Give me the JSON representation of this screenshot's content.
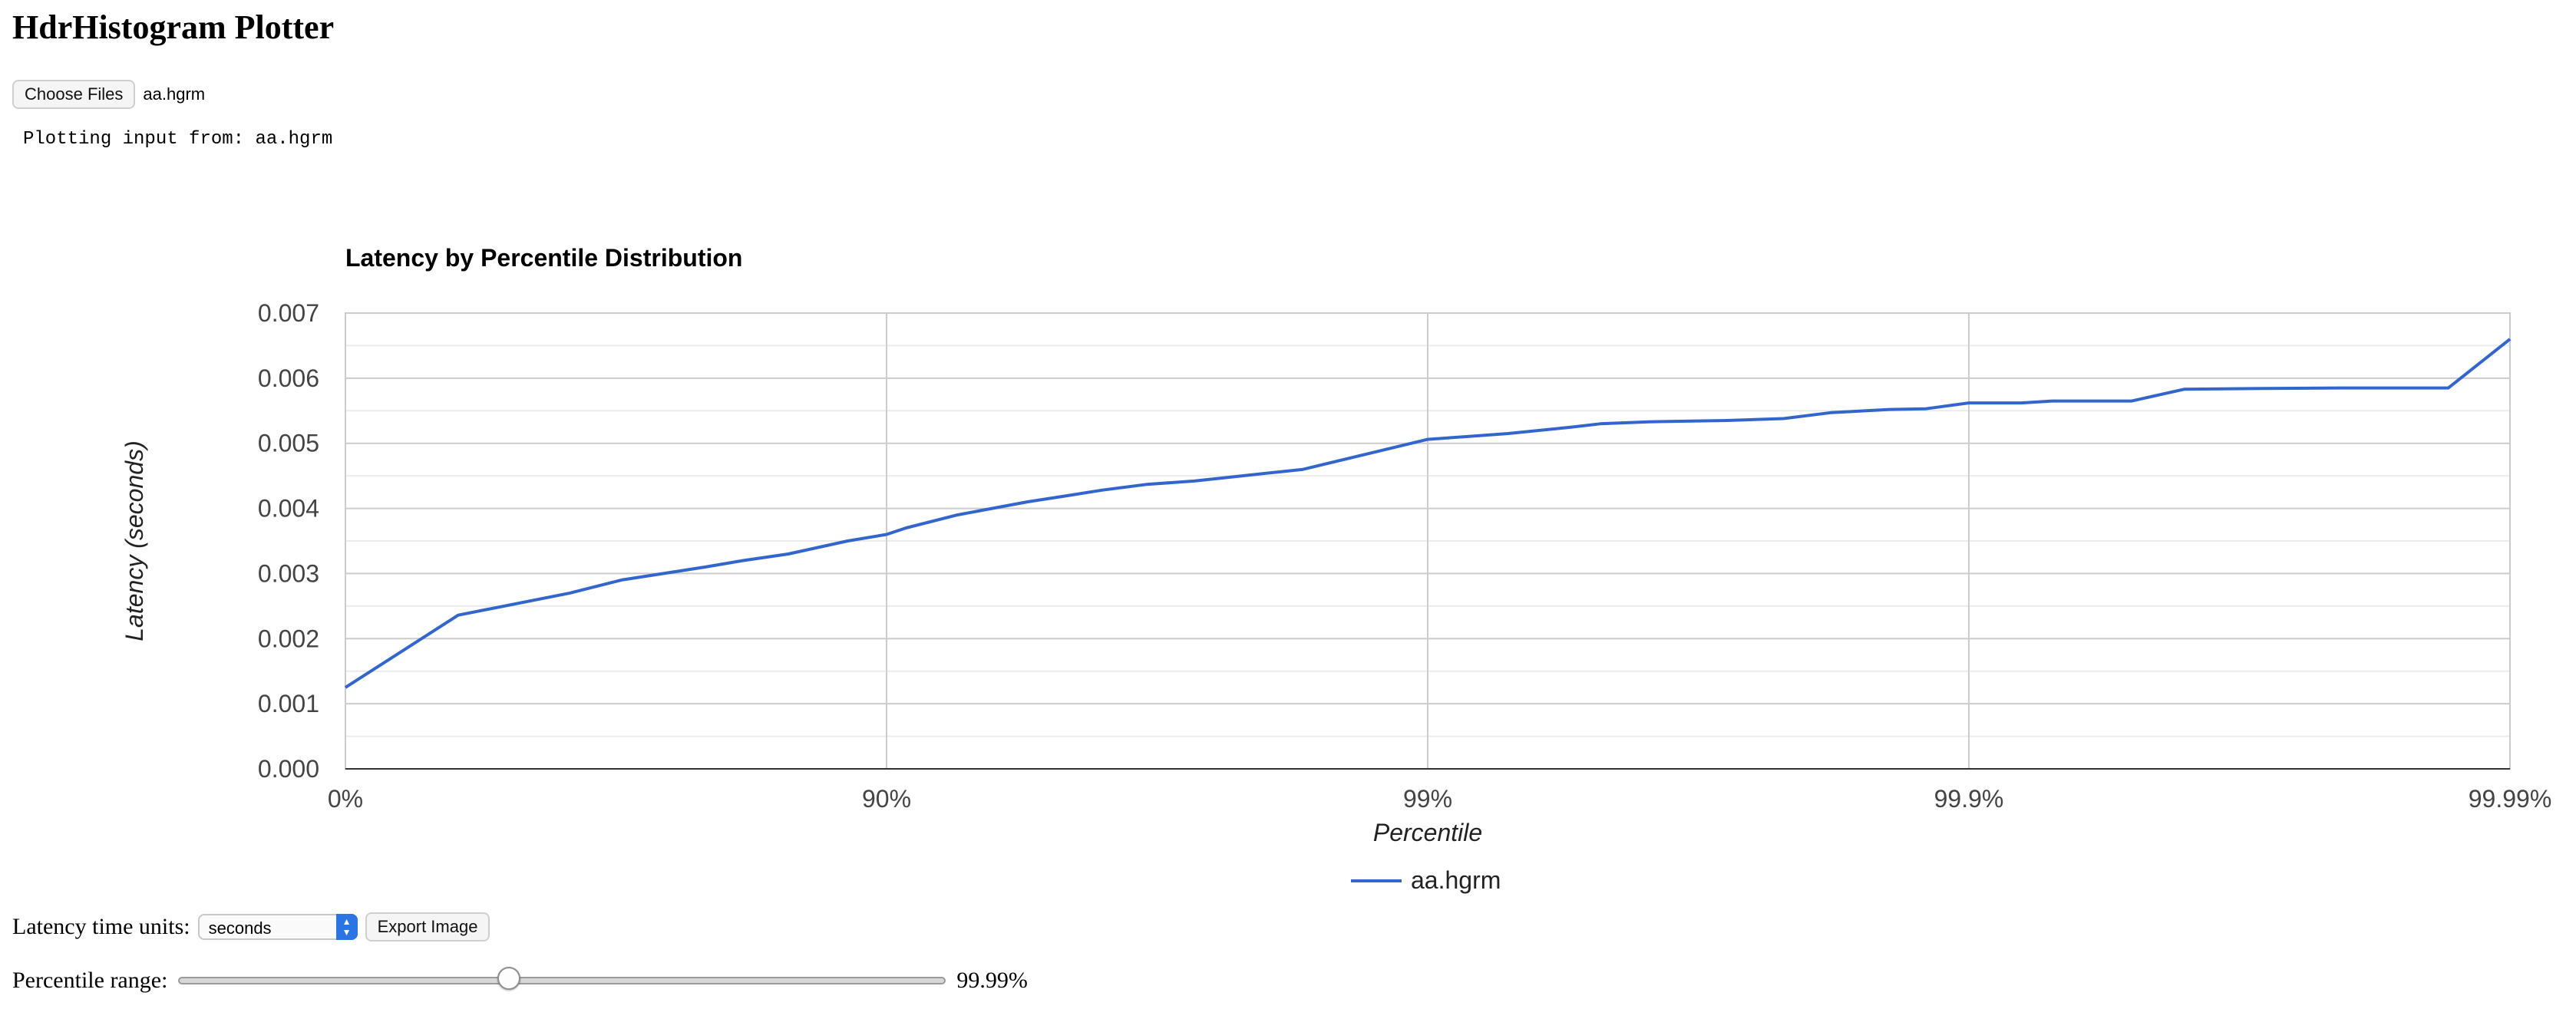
{
  "page": {
    "title": "HdrHistogram Plotter",
    "choose_files_label": "Choose Files",
    "file_name": "aa.hgrm",
    "plotting_input_text": "Plotting input from: aa.hgrm"
  },
  "controls": {
    "units_label": "Latency time units:",
    "units_selected": "seconds",
    "export_label": "Export Image",
    "range_label": "Percentile range:",
    "range_value": "99.99%",
    "range_slider_fraction": 0.43
  },
  "colors": {
    "series": "#3366cc",
    "select_accent": "#2b74e4"
  },
  "chart_data": {
    "type": "line",
    "title": "Latency by Percentile Distribution",
    "xlabel": "Percentile",
    "ylabel": "Latency (seconds)",
    "x_scale": "log10(1/(1-percentile))",
    "x_ticks": [
      "0%",
      "90%",
      "99%",
      "99.9%",
      "99.99%"
    ],
    "x_range": [
      "0%",
      "99.99%"
    ],
    "ylim": [
      0,
      0.007
    ],
    "y_ticks": [
      "0.000",
      "0.001",
      "0.002",
      "0.003",
      "0.004",
      "0.005",
      "0.006",
      "0.007"
    ],
    "grid": true,
    "legend_position": "bottom",
    "series": [
      {
        "name": "aa.hgrm",
        "points": [
          [
            "0%",
            0.00125
          ],
          [
            "38.1%",
            0.00236
          ],
          [
            "61.5%",
            0.0027
          ],
          [
            "69.1%",
            0.0029
          ],
          [
            "78.4%",
            0.0031
          ],
          [
            "81.6%",
            0.0032
          ],
          [
            "84.8%",
            0.0033
          ],
          [
            "88.2%",
            0.0035
          ],
          [
            "90%",
            0.0036
          ],
          [
            "90.8%",
            0.0037
          ],
          [
            "92.6%",
            0.0039
          ],
          [
            "94.5%",
            0.0041
          ],
          [
            "95.4%",
            0.0042
          ],
          [
            "96.0%",
            0.00428
          ],
          [
            "96.7%",
            0.00437
          ],
          [
            "97.3%",
            0.00442
          ],
          [
            "97.8%",
            0.0045
          ],
          [
            "98.3%",
            0.0046
          ],
          [
            "99%",
            0.00506
          ],
          [
            "99.29%",
            0.00515
          ],
          [
            "99.46%",
            0.00525
          ],
          [
            "99.52%",
            0.0053
          ],
          [
            "99.61%",
            0.00533
          ],
          [
            "99.72%",
            0.00535
          ],
          [
            "99.78%",
            0.00538
          ],
          [
            "99.82%",
            0.00547
          ],
          [
            "99.86%",
            0.00552
          ],
          [
            "99.88%",
            0.00553
          ],
          [
            "99.9%",
            0.00562
          ],
          [
            "99.92%",
            0.00562
          ],
          [
            "99.93%",
            0.00565
          ],
          [
            "99.95%",
            0.00565
          ],
          [
            "99.96%",
            0.00583
          ],
          [
            "99.97%",
            0.00584
          ],
          [
            "99.98%",
            0.00585
          ],
          [
            "99.987%",
            0.00585
          ],
          [
            "99.99%",
            0.0066
          ]
        ]
      }
    ]
  }
}
